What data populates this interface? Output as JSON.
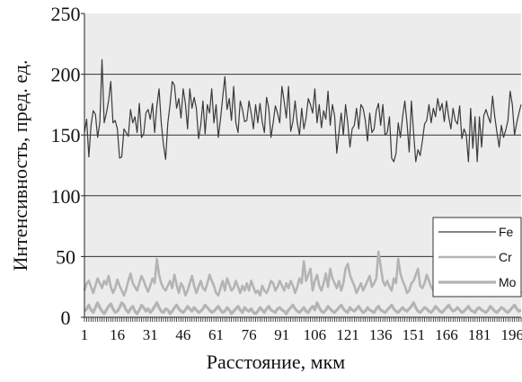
{
  "chart_data": {
    "type": "line",
    "title": "",
    "xlabel": "Расстояние, мкм",
    "ylabel": "Интенсивность, пред. ед.",
    "ylim": [
      0,
      250
    ],
    "yticks": [
      0,
      50,
      100,
      150,
      200,
      250
    ],
    "xlim": [
      1,
      200
    ],
    "xtick_labels": [
      "1",
      "16",
      "31",
      "46",
      "61",
      "76",
      "91",
      "106",
      "121",
      "136",
      "151",
      "166",
      "181",
      "196"
    ],
    "grid": "horizontal",
    "legend_position": "right",
    "colors": {
      "plot_bg": "#ececec",
      "grid": "#333333",
      "fe": "#3a3a3a",
      "cr": "#b4b4b4",
      "mo": "#b4b4b4"
    },
    "series": [
      {
        "name": "Fe",
        "values": [
          152,
          163,
          132,
          158,
          170,
          167,
          148,
          160,
          212,
          160,
          168,
          178,
          194,
          160,
          162,
          155,
          131,
          132,
          155,
          152,
          149,
          171,
          160,
          165,
          152,
          176,
          148,
          151,
          168,
          171,
          163,
          176,
          152,
          174,
          188,
          160,
          142,
          130,
          160,
          175,
          194,
          191,
          172,
          180,
          164,
          188,
          176,
          155,
          188,
          172,
          181,
          172,
          147,
          158,
          178,
          151,
          175,
          168,
          188,
          160,
          175,
          148,
          163,
          181,
          198,
          171,
          180,
          162,
          190,
          160,
          152,
          178,
          171,
          161,
          162,
          178,
          168,
          155,
          175,
          160,
          176,
          161,
          152,
          181,
          172,
          148,
          160,
          174,
          168,
          160,
          190,
          178,
          164,
          190,
          153,
          161,
          178,
          160,
          150,
          172,
          155,
          164,
          180,
          175,
          168,
          188,
          160,
          175,
          156,
          170,
          163,
          186,
          158,
          175,
          166,
          135,
          152,
          168,
          150,
          175,
          160,
          140,
          155,
          158,
          172,
          155,
          175,
          172,
          162,
          145,
          168,
          152,
          155,
          170,
          176,
          158,
          175,
          150,
          152,
          165,
          131,
          128,
          135,
          160,
          148,
          165,
          178,
          160,
          136,
          178,
          152,
          128,
          138,
          133,
          145,
          159,
          162,
          175,
          160,
          172,
          165,
          180,
          170,
          176,
          161,
          178,
          165,
          155,
          172,
          162,
          159,
          174,
          147,
          155,
          150,
          128,
          172,
          139,
          165,
          128,
          165,
          140,
          166,
          171,
          165,
          160,
          182,
          165,
          152,
          140,
          158,
          148,
          154,
          162,
          186,
          175,
          150,
          160,
          168,
          175
        ]
      },
      {
        "name": "Cr",
        "values": [
          22,
          28,
          30,
          25,
          20,
          26,
          32,
          28,
          24,
          30,
          27,
          34,
          25,
          20,
          24,
          31,
          26,
          22,
          18,
          23,
          30,
          36,
          28,
          25,
          22,
          28,
          34,
          30,
          25,
          21,
          26,
          32,
          28,
          48,
          35,
          28,
          24,
          22,
          26,
          30,
          24,
          35,
          27,
          20,
          28,
          25,
          18,
          22,
          28,
          34,
          26,
          20,
          25,
          30,
          24,
          22,
          28,
          35,
          30,
          26,
          20,
          18,
          24,
          30,
          22,
          32,
          27,
          22,
          24,
          30,
          25,
          20,
          26,
          22,
          28,
          22,
          30,
          25,
          20,
          22,
          18,
          26,
          22,
          20,
          24,
          30,
          28,
          22,
          25,
          30,
          26,
          22,
          28,
          24,
          30,
          26,
          20,
          25,
          32,
          28,
          46,
          30,
          35,
          40,
          22,
          30,
          35,
          26,
          22,
          28,
          36,
          25,
          40,
          32,
          28,
          24,
          30,
          22,
          28,
          40,
          44,
          35,
          30,
          26,
          20,
          24,
          28,
          22,
          26,
          30,
          34,
          25,
          28,
          32,
          54,
          42,
          30,
          26,
          30,
          25,
          22,
          32,
          28,
          48,
          36,
          30,
          26,
          20,
          22,
          28,
          30,
          35,
          40,
          26,
          24,
          28,
          35,
          30,
          25,
          22,
          20,
          26,
          30,
          25,
          24,
          32,
          28,
          50,
          38,
          30,
          25,
          30,
          28,
          40,
          26,
          30,
          25,
          22,
          28,
          18,
          20,
          24,
          26,
          22,
          28,
          34,
          20,
          25,
          30,
          24,
          18,
          22,
          26,
          18,
          22,
          28,
          24,
          30,
          26,
          20
        ]
      },
      {
        "name": "Mo",
        "values": [
          5,
          7,
          10,
          6,
          4,
          8,
          12,
          8,
          5,
          3,
          6,
          9,
          11,
          7,
          4,
          5,
          8,
          12,
          10,
          6,
          4,
          7,
          9,
          5,
          3,
          6,
          10,
          8,
          5,
          7,
          4,
          6,
          9,
          12,
          8,
          5,
          4,
          7,
          6,
          3,
          5,
          8,
          10,
          7,
          5,
          4,
          6,
          9,
          7,
          5,
          8,
          6,
          4,
          5,
          7,
          10,
          8,
          6,
          4,
          5,
          7,
          9,
          6,
          4,
          5,
          8,
          6,
          3,
          5,
          7,
          9,
          6,
          4,
          8,
          6,
          5,
          7,
          4,
          3,
          5,
          8,
          6,
          4,
          7,
          9,
          6,
          5,
          4,
          7,
          8,
          6,
          5,
          3,
          6,
          8,
          10,
          7,
          5,
          4,
          6,
          8,
          5,
          4,
          7,
          9,
          6,
          12,
          8,
          5,
          4,
          6,
          9,
          7,
          5,
          4,
          6,
          8,
          10,
          7,
          5,
          4,
          8,
          6,
          5,
          7,
          9,
          6,
          4,
          5,
          8,
          6,
          5,
          4,
          7,
          9,
          6,
          5,
          4,
          6,
          8,
          10,
          7,
          5,
          4,
          6,
          8,
          6,
          5,
          7,
          9,
          12,
          8,
          5,
          4,
          6,
          8,
          7,
          5,
          4,
          6,
          9,
          7,
          5,
          4,
          6,
          8,
          10,
          7,
          5,
          6,
          8,
          6,
          4,
          5,
          7,
          9,
          6,
          5,
          4,
          7,
          8,
          6,
          5,
          4,
          6,
          9,
          7,
          5,
          4,
          6,
          8,
          7,
          5,
          4,
          6,
          8,
          10,
          7,
          5,
          6
        ]
      }
    ]
  }
}
